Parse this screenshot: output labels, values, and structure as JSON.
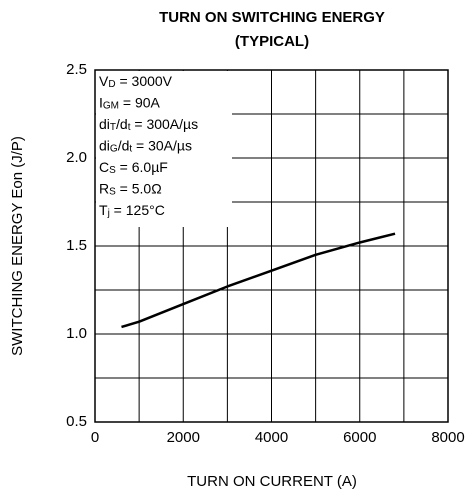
{
  "chart_data": {
    "type": "line",
    "title": [
      "TURN ON SWITCHING ENERGY",
      "(TYPICAL)"
    ],
    "x_label": "TURN ON CURRENT  (A)",
    "y_label": "SWITCHING ENERGY  Eon  (J/P)",
    "annotation": [
      [
        "V",
        "D",
        " = 3000V"
      ],
      [
        "I",
        "GM",
        " = 90A"
      ],
      [
        "di",
        "T",
        "/d",
        "t",
        " = 300A/µs"
      ],
      [
        "di",
        "G",
        "/d",
        "t",
        " = 30A/µs"
      ],
      [
        "C",
        "S",
        " = 6.0µF"
      ],
      [
        "R",
        "S",
        " = 5.0Ω"
      ],
      [
        "T",
        "j",
        " = 125°C"
      ]
    ],
    "x": [
      600,
      1000,
      2000,
      3000,
      4000,
      5000,
      6000,
      6800
    ],
    "series": [
      {
        "color": "#000000",
        "values": [
          1.04,
          1.07,
          1.17,
          1.27,
          1.36,
          1.45,
          1.52,
          1.57
        ]
      }
    ],
    "xlim": [
      0,
      8000
    ],
    "xticks": [
      0,
      2000,
      4000,
      6000,
      8000
    ],
    "xgrid": [
      1000,
      3000,
      5000,
      7000
    ],
    "ylim": [
      0.5,
      2.5
    ],
    "yticks": [
      {
        "value": 0.5,
        "label": "0.5"
      },
      {
        "value": 1.0,
        "label": "1.0"
      },
      {
        "value": 1.5,
        "label": "1.5"
      },
      {
        "value": 2.0,
        "label": "2.0"
      },
      {
        "value": 2.5,
        "label": "2.5"
      }
    ],
    "ygrid": [
      0.75,
      1.25,
      1.75,
      2.25
    ],
    "grid": true
  }
}
